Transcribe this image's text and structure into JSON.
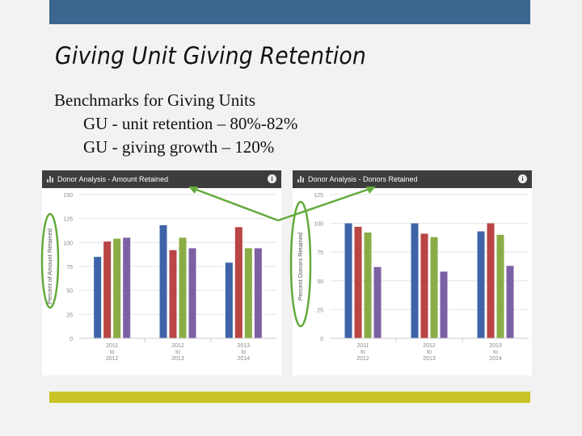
{
  "slide": {
    "title": "Giving Unit Giving Retention",
    "benchmarks_heading": "Benchmarks for Giving Units",
    "benchmark_lines": [
      "GU - unit retention – 80%-82%",
      "GU - giving growth – 120%"
    ]
  },
  "colors": {
    "blue": "#3e63a8",
    "red": "#b94544",
    "green": "#8aac46",
    "purple": "#7c60a4",
    "highlight": "#62ab3c",
    "top_bar": "#3b6690",
    "bottom_bar": "#c8c428"
  },
  "chart_data": [
    {
      "type": "bar",
      "title": "Donor Analysis - Amount Retained",
      "ylabel": "Percent of Amount Retained",
      "ylim": [
        0,
        150
      ],
      "yticks": [
        0,
        25,
        50,
        75,
        100,
        125,
        150
      ],
      "categories": [
        "2011 to 2012",
        "2012 to 2013",
        "2013 to 2014"
      ],
      "category_lines": [
        [
          "2011",
          "to",
          "2012"
        ],
        [
          "2012",
          "to",
          "2013"
        ],
        [
          "2013",
          "to",
          "2014"
        ]
      ],
      "series": [
        {
          "color": "blue",
          "values": [
            85,
            118,
            79
          ]
        },
        {
          "color": "red",
          "values": [
            101,
            92,
            116
          ]
        },
        {
          "color": "green",
          "values": [
            104,
            105,
            94
          ]
        },
        {
          "color": "purple",
          "values": [
            105,
            94,
            94
          ]
        }
      ]
    },
    {
      "type": "bar",
      "title": "Donor Analysis - Donors Retained",
      "ylabel": "Percent Donors Retained",
      "ylim": [
        0,
        125
      ],
      "yticks": [
        0,
        25,
        50,
        75,
        100,
        125
      ],
      "categories": [
        "2011 to 2012",
        "2012 to 2013",
        "2013 to 2014"
      ],
      "category_lines": [
        [
          "2011",
          "to",
          "2012"
        ],
        [
          "2012",
          "to",
          "2013"
        ],
        [
          "2013",
          "to",
          "2014"
        ]
      ],
      "series": [
        {
          "color": "blue",
          "values": [
            100,
            100,
            93
          ]
        },
        {
          "color": "red",
          "values": [
            97,
            91,
            100
          ]
        },
        {
          "color": "green",
          "values": [
            92,
            88,
            90
          ]
        },
        {
          "color": "purple",
          "values": [
            62,
            58,
            63
          ]
        }
      ]
    }
  ]
}
